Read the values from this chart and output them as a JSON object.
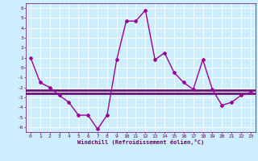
{
  "x": [
    0,
    1,
    2,
    3,
    4,
    5,
    6,
    7,
    8,
    9,
    10,
    11,
    12,
    13,
    14,
    15,
    16,
    17,
    18,
    19,
    20,
    21,
    22,
    23
  ],
  "y": [
    1.0,
    -1.5,
    -2.0,
    -2.8,
    -3.5,
    -4.8,
    -4.8,
    -6.2,
    -4.8,
    0.8,
    4.7,
    4.7,
    5.8,
    0.8,
    1.5,
    -0.5,
    -1.5,
    -2.2,
    0.8,
    -2.2,
    -3.8,
    -3.5,
    -2.8,
    -2.5
  ],
  "hline1": -2.3,
  "hline2": -2.6,
  "ylim": [
    -6.5,
    6.5
  ],
  "xlim": [
    -0.5,
    23.5
  ],
  "yticks": [
    -6,
    -5,
    -4,
    -3,
    -2,
    -1,
    0,
    1,
    2,
    3,
    4,
    5,
    6
  ],
  "xticks": [
    0,
    1,
    2,
    3,
    4,
    5,
    6,
    7,
    8,
    9,
    10,
    11,
    12,
    13,
    14,
    15,
    16,
    17,
    18,
    19,
    20,
    21,
    22,
    23
  ],
  "line_color": "#990099",
  "hline_color": "#660066",
  "bg_color": "#cceeff",
  "grid_color": "#ffffff",
  "xlabel": "Windchill (Refroidissement éolien,°C)",
  "xlabel_color": "#660066",
  "tick_color": "#660066",
  "marker": "D",
  "marker_size": 2.0,
  "line_width": 1.0
}
